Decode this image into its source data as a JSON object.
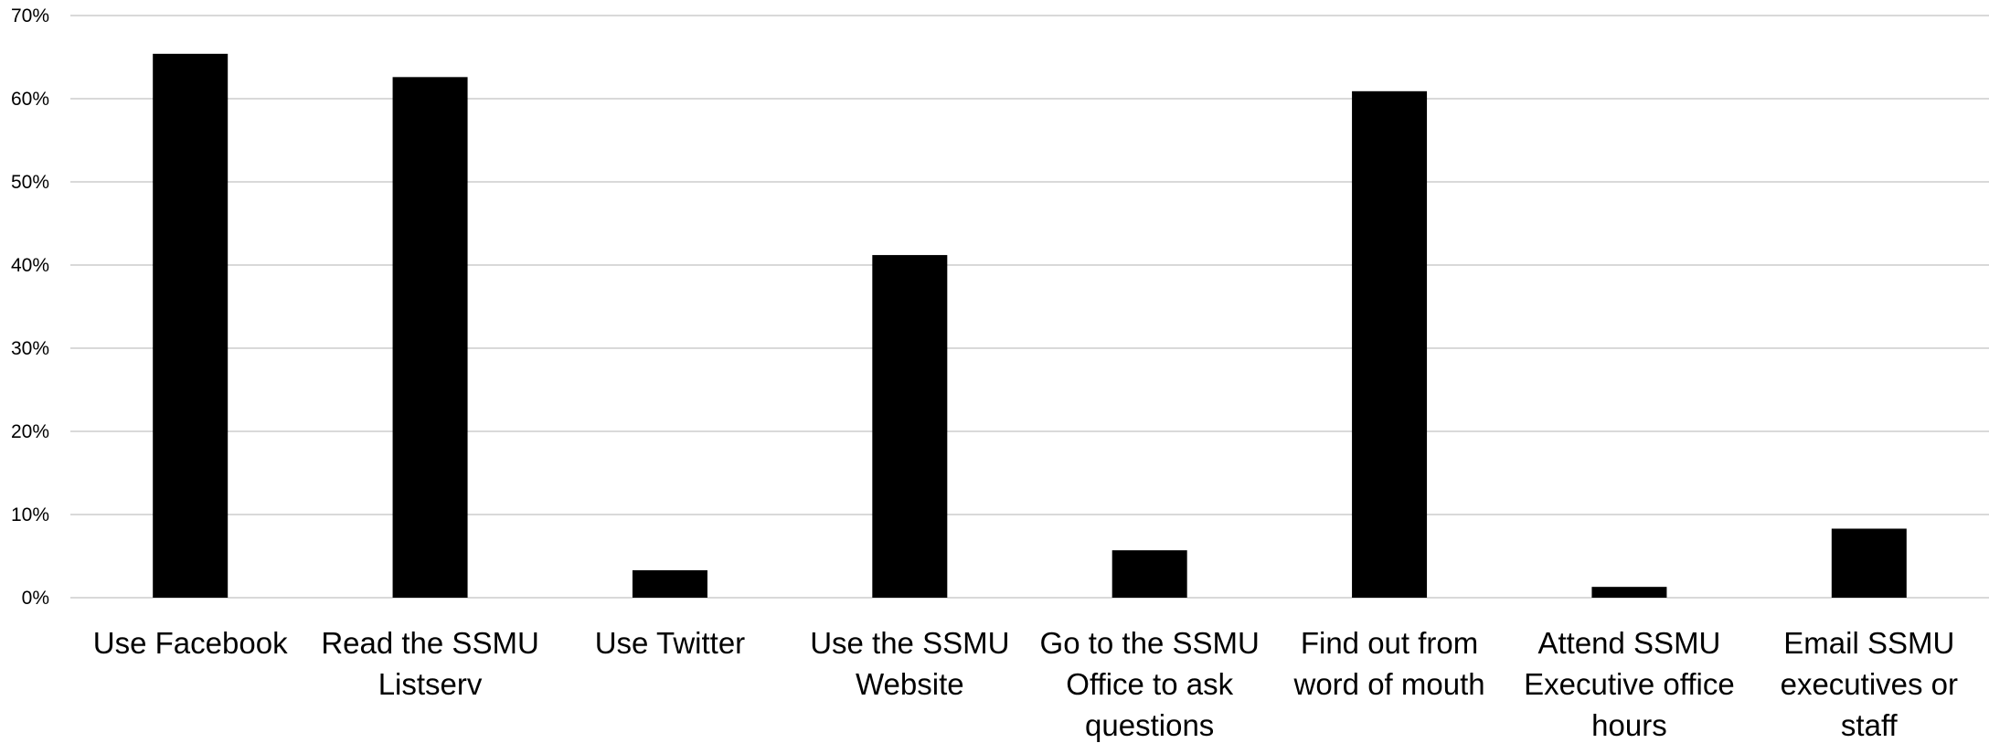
{
  "chart_data": {
    "type": "bar",
    "title": "",
    "xlabel": "",
    "ylabel": "",
    "ylim": [
      0,
      70
    ],
    "yticks": [
      0,
      10,
      20,
      30,
      40,
      50,
      60,
      70
    ],
    "ytick_labels": [
      "0%",
      "10%",
      "20%",
      "30%",
      "40%",
      "50%",
      "60%",
      "70%"
    ],
    "grid": true,
    "legend": "none",
    "bar_color": "#000000",
    "grid_color": "#d9d9d9",
    "categories": [
      [
        "Use Facebook"
      ],
      [
        "Read the SSMU",
        "Listserv"
      ],
      [
        "Use Twitter"
      ],
      [
        "Use the SSMU",
        "Website"
      ],
      [
        "Go to the SSMU",
        "Office to ask",
        "questions"
      ],
      [
        "Find out from",
        "word of mouth"
      ],
      [
        "Attend SSMU",
        "Executive office",
        "hours"
      ],
      [
        "Email SSMU",
        "executives or",
        "staff"
      ]
    ],
    "values": [
      65.4,
      62.6,
      3.3,
      41.2,
      5.7,
      60.9,
      1.3,
      8.3
    ]
  }
}
